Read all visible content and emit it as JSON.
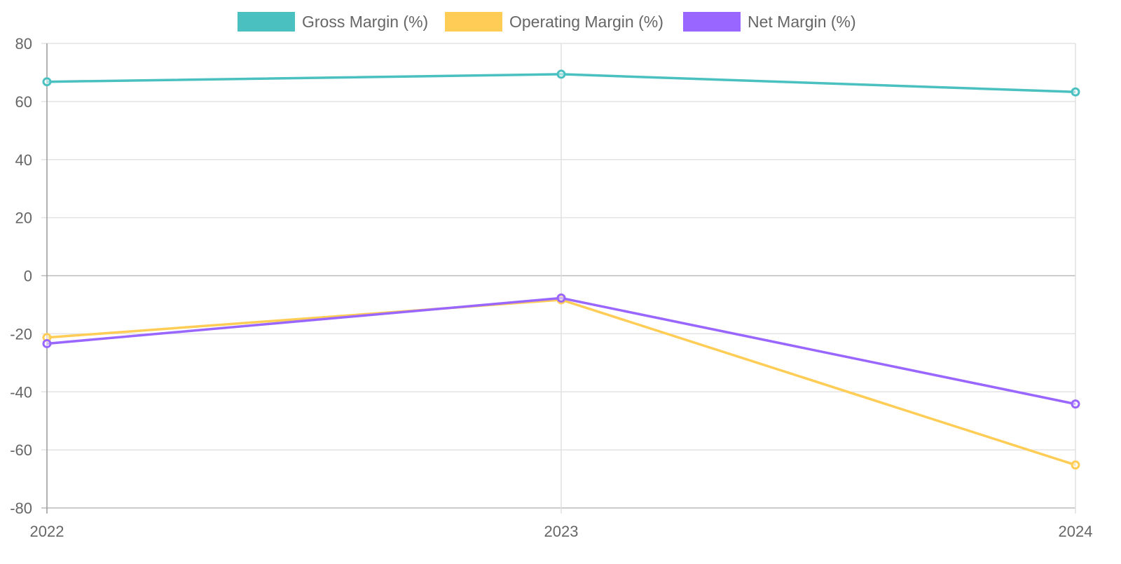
{
  "chart_data": {
    "type": "line",
    "title": "",
    "xlabel": "",
    "ylabel": "",
    "categories": [
      "2022",
      "2023",
      "2024"
    ],
    "ylim": [
      -80,
      80
    ],
    "yticks": [
      80,
      60,
      40,
      20,
      0,
      -20,
      -40,
      -60,
      -80
    ],
    "grid": true,
    "legend_position": "top-center",
    "series": [
      {
        "name": "Gross Margin (%)",
        "color": "#4bc0c0",
        "values": [
          66.8,
          69.4,
          63.3
        ]
      },
      {
        "name": "Operating Margin (%)",
        "color": "#ffcd56",
        "values": [
          -21.3,
          -8.3,
          -65.2
        ]
      },
      {
        "name": "Net Margin (%)",
        "color": "#9966ff",
        "values": [
          -23.4,
          -7.7,
          -44.2
        ]
      }
    ]
  }
}
